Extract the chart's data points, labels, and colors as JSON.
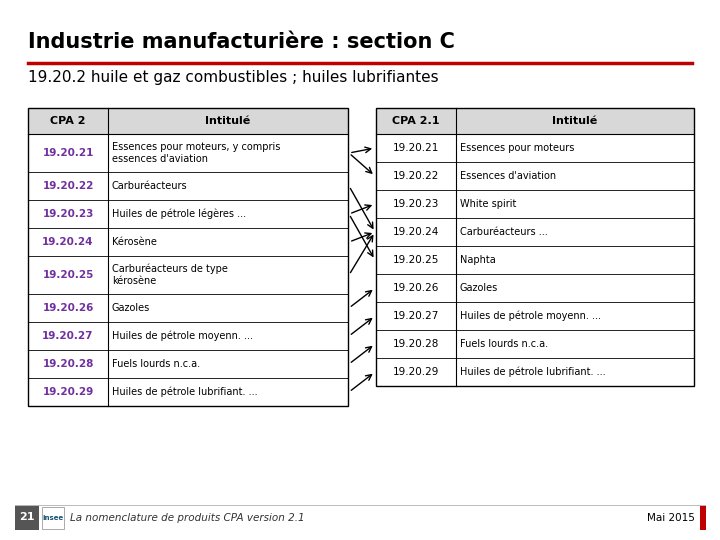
{
  "title": "Industrie manufacturière : section C",
  "subtitle": "19.20.2 huile et gaz combustibles ; huiles lubrifiantes",
  "left_table": {
    "headers": [
      "CPA 2",
      "Intitulé"
    ],
    "rows": [
      [
        "19.20.21",
        "Essences pour moteurs, y compris\nessences d'aviation"
      ],
      [
        "19.20.22",
        "Carburéacteurs"
      ],
      [
        "19.20.23",
        "Huiles de pétrole légères ..."
      ],
      [
        "19.20.24",
        "Kérosène"
      ],
      [
        "19.20.25",
        "Carburéacteurs de type\nkérosène"
      ],
      [
        "19.20.26",
        "Gazoles"
      ],
      [
        "19.20.27",
        "Huiles de pétrole moyenn. ..."
      ],
      [
        "19.20.28",
        "Fuels lourds n.c.a."
      ],
      [
        "19.20.29",
        "Huiles de pétrole lubrifiant. ..."
      ]
    ]
  },
  "right_table": {
    "headers": [
      "CPA 2.1",
      "Intitulé"
    ],
    "rows": [
      [
        "19.20.21",
        "Essences pour moteurs"
      ],
      [
        "19.20.22",
        "Essences d'aviation"
      ],
      [
        "19.20.23",
        "White spirit"
      ],
      [
        "19.20.24",
        "Carburéacteurs ..."
      ],
      [
        "19.20.25",
        "Naphta"
      ],
      [
        "19.20.26",
        "Gazoles"
      ],
      [
        "19.20.27",
        "Huiles de pétrole moyenn. ..."
      ],
      [
        "19.20.28",
        "Fuels lourds n.c.a."
      ],
      [
        "19.20.29",
        "Huiles de pétrole lubrifiant. ..."
      ]
    ]
  },
  "arrows": [
    [
      0,
      0
    ],
    [
      0,
      1
    ],
    [
      1,
      3
    ],
    [
      2,
      2
    ],
    [
      2,
      4
    ],
    [
      3,
      3
    ],
    [
      4,
      3
    ],
    [
      5,
      5
    ],
    [
      6,
      6
    ],
    [
      7,
      7
    ],
    [
      8,
      8
    ]
  ],
  "cpa2_color": "#7030A0",
  "header_bg": "#D8D8D8",
  "title_color": "#000000",
  "subtitle_color": "#000000",
  "red_line_color": "#C00000",
  "footer_text": "La nomenclature de produits CPA version 2.1",
  "footer_page": "21",
  "footer_date": "Mai 2015",
  "footer_bar_color": "#C00000",
  "bg_color": "#FFFFFF"
}
